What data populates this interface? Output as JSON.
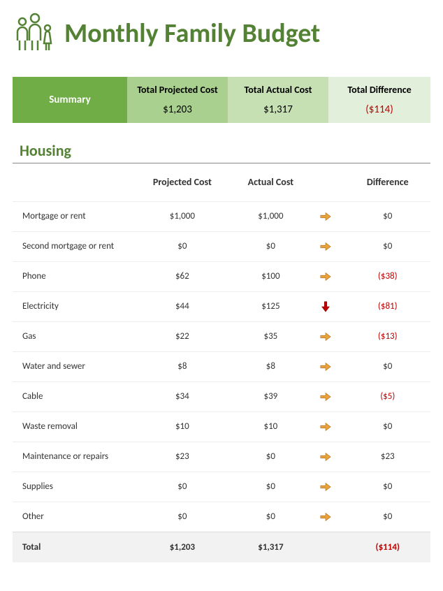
{
  "title": "Monthly Family Budget",
  "colors": {
    "title_green": "#548235",
    "summary_bg": "#70ad47",
    "proj_bg": "#a9d08e",
    "act_bg": "#c6e0b4",
    "diff_bg": "#e2efda",
    "negative_text": "#c00000",
    "total_row_bg": "#f2f2f2",
    "arrow_fill": "#e8a33d",
    "arrow_down_fill": "#c00000",
    "icon_stroke": "#548235"
  },
  "summary": {
    "label": "Summary",
    "projected": {
      "header": "Total Projected Cost",
      "value": "$1,203"
    },
    "actual": {
      "header": "Total Actual Cost",
      "value": "$1,317"
    },
    "diff": {
      "header": "Total Difference",
      "value": "($114)"
    }
  },
  "section": {
    "title": "Housing",
    "columns": {
      "projected": "Projected Cost",
      "actual": "Actual Cost",
      "difference": "Difference"
    },
    "rows": [
      {
        "label": "Mortgage or rent",
        "projected": "$1,000",
        "actual": "$1,000",
        "icon": "right",
        "diff": "$0",
        "negative": false
      },
      {
        "label": "Second mortgage or rent",
        "projected": "$0",
        "actual": "$0",
        "icon": "right",
        "diff": "$0",
        "negative": false
      },
      {
        "label": "Phone",
        "projected": "$62",
        "actual": "$100",
        "icon": "right",
        "diff": "($38)",
        "negative": true
      },
      {
        "label": "Electricity",
        "projected": "$44",
        "actual": "$125",
        "icon": "down",
        "diff": "($81)",
        "negative": true
      },
      {
        "label": "Gas",
        "projected": "$22",
        "actual": "$35",
        "icon": "right",
        "diff": "($13)",
        "negative": true
      },
      {
        "label": "Water and sewer",
        "projected": "$8",
        "actual": "$8",
        "icon": "right",
        "diff": "$0",
        "negative": false
      },
      {
        "label": "Cable",
        "projected": "$34",
        "actual": "$39",
        "icon": "right",
        "diff": "($5)",
        "negative": true
      },
      {
        "label": "Waste removal",
        "projected": "$10",
        "actual": "$10",
        "icon": "right",
        "diff": "$0",
        "negative": false
      },
      {
        "label": "Maintenance or repairs",
        "projected": "$23",
        "actual": "$0",
        "icon": "right",
        "diff": "$23",
        "negative": false
      },
      {
        "label": "Supplies",
        "projected": "$0",
        "actual": "$0",
        "icon": "right",
        "diff": "$0",
        "negative": false
      },
      {
        "label": "Other",
        "projected": "$0",
        "actual": "$0",
        "icon": "right",
        "diff": "$0",
        "negative": false
      }
    ],
    "total": {
      "label": "Total",
      "projected": "$1,203",
      "actual": "$1,317",
      "diff": "($114)",
      "negative": true
    }
  }
}
